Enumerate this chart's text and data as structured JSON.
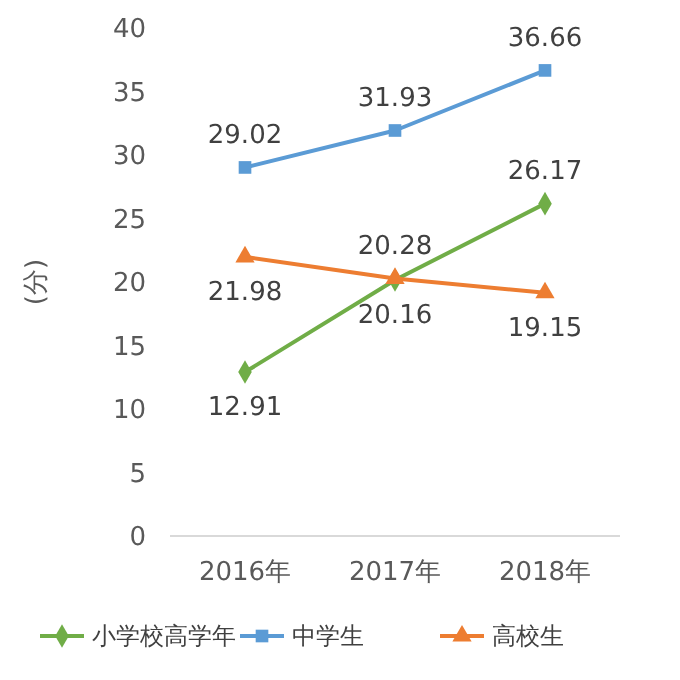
{
  "chart_data": {
    "type": "line",
    "ylabel": "(分)",
    "categories": [
      "2016年",
      "2017年",
      "2018年"
    ],
    "series": [
      {
        "name": "小学校高学年",
        "color": "#70ad47",
        "marker": "diamond",
        "values": [
          12.91,
          20.16,
          26.17
        ]
      },
      {
        "name": "中学生",
        "color": "#5b9bd5",
        "marker": "square",
        "values": [
          29.02,
          31.93,
          36.66
        ]
      },
      {
        "name": "高校生",
        "color": "#ed7d31",
        "marker": "triangle",
        "values": [
          21.98,
          20.28,
          19.15
        ]
      }
    ],
    "ylim": [
      0,
      40
    ],
    "yticks": [
      0,
      5,
      10,
      15,
      20,
      25,
      30,
      35,
      40
    ],
    "grid": false,
    "legend": "bottom",
    "data_labels": true
  }
}
